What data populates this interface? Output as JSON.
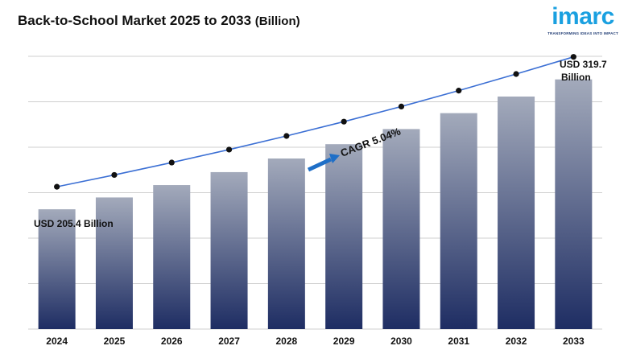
{
  "header": {
    "title": "Back-to-School Market 2025 to 2033",
    "unit": "(Billion)"
  },
  "logo": {
    "name": "imarc",
    "tagline": "TRANSFORMING IDEAS INTO IMPACT",
    "color": "#1aa0e0"
  },
  "chart_data": {
    "type": "bar",
    "categories": [
      "2024",
      "2025",
      "2026",
      "2027",
      "2028",
      "2029",
      "2030",
      "2031",
      "2032",
      "2033"
    ],
    "values": [
      205.4,
      215.8,
      226.7,
      238.1,
      250.1,
      262.7,
      276.0,
      290.0,
      304.6,
      319.7
    ],
    "trend_line": true,
    "ylim": [
      100,
      340
    ],
    "grid": true,
    "annotations": {
      "start_label": "USD 205.4 Billion",
      "end_label_line1": "USD 319.7",
      "end_label_line2": "Billion",
      "cagr": "CAGR 5.04%"
    },
    "colors": {
      "bar_top": "#a3aabb",
      "bar_bottom": "#1e2d63",
      "line": "#3b6fd4",
      "marker": "#111111",
      "arrow": "#1f6fc7",
      "grid": "#cfcfcf"
    }
  }
}
